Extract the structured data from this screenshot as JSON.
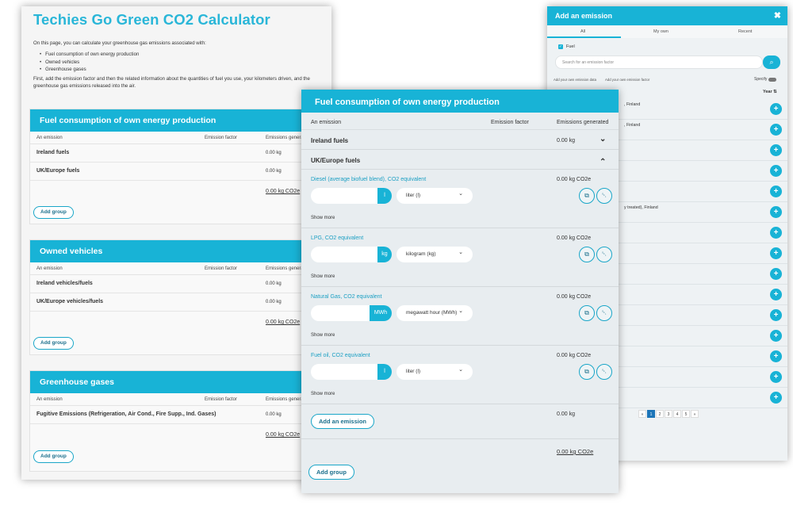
{
  "left": {
    "title": "Techies Go Green CO2 Calculator",
    "intro_line": "On this page, you can calculate your greenhouse gas emissions associated with:",
    "bullets": [
      "Fuel consumption of own energy production",
      "Owned vehicles",
      "Greenhouse gases"
    ],
    "outro": "First, add the emission factor and then the related information about the quantities of fuel you use, your kilometers driven, and the greenhouse gas emissions released into the air.",
    "groups": [
      {
        "title": "Fuel consumption of own energy production",
        "col_emission": "An emission",
        "col_factor": "Emission factor",
        "col_generated": "Emissions generated",
        "rows": [
          {
            "name": "Ireland fuels",
            "value": "0.00 kg"
          },
          {
            "name": "UK/Europe fuels",
            "value": "0.00 kg"
          }
        ],
        "total": "0.00 kg CO2e",
        "add_group": "Add group"
      },
      {
        "title": "Owned vehicles",
        "col_emission": "An emission",
        "col_factor": "Emission factor",
        "col_generated": "Emissions generated",
        "rows": [
          {
            "name": "Ireland vehicles/fuels",
            "value": "0.00 kg"
          },
          {
            "name": "UK/Europe vehicles/fuels",
            "value": "0.00 kg"
          }
        ],
        "total": "0.00 kg CO2e",
        "add_group": "Add group"
      },
      {
        "title": "Greenhouse gases",
        "col_emission": "An emission",
        "col_factor": "Emission factor",
        "col_generated": "Emissions generated",
        "rows": [
          {
            "name": "Fugitive Emissions (Refrigeration, Air Cond., Fire Supp., Ind. Gases)",
            "value": "0.00 kg"
          }
        ],
        "total": "0.00 kg CO2e",
        "add_group": "Add group"
      }
    ]
  },
  "right": {
    "title": "Add an emission",
    "close_icon": "✖",
    "tabs": [
      "All",
      "My own",
      "Recent"
    ],
    "fuel_label": "Fuel",
    "search_placeholder": "Search for an emission factor",
    "search_icon": "⌕",
    "link_own_data": "Add your own emission data",
    "link_own_factor": "Add your own emission factor",
    "specify": "Specify",
    "year": "Year",
    "items": [
      ", Finland",
      ", Finland",
      "",
      "",
      "",
      "y treated), Finland",
      "",
      "",
      "",
      "",
      "",
      "",
      "",
      "",
      ""
    ],
    "plus_icon": "+",
    "pages": [
      "«",
      "1",
      "2",
      "3",
      "4",
      "5",
      "»"
    ]
  },
  "center": {
    "title": "Fuel consumption of own energy production",
    "col_emission": "An emission",
    "col_factor": "Emission factor",
    "col_generated": "Emissions generated",
    "groups": [
      {
        "name": "Ireland fuels",
        "value": "0.00 kg",
        "chev": "⌄"
      },
      {
        "name": "UK/Europe fuels",
        "chev": "⌃"
      }
    ],
    "emissions": [
      {
        "name": "Diesel (average biofuel blend), CO2 equivalent",
        "value": "0.00 kg CO2e",
        "unit": "l",
        "select": "liter (l)",
        "show_more": "Show more"
      },
      {
        "name": "LPG, CO2 equivalent",
        "value": "0.00 kg CO2e",
        "unit": "kg",
        "select": "kilogram (kg)",
        "show_more": "Show more"
      },
      {
        "name": "Natural Gas, CO2 equivalent",
        "value": "0.00 kg CO2e",
        "unit": "MWh",
        "select": "megawatt hour (MWh)",
        "show_more": "Show more"
      },
      {
        "name": "Fuel oil, CO2 equivalent",
        "value": "0.00 kg CO2e",
        "unit": "l",
        "select": "liter (l)",
        "show_more": "Show more"
      }
    ],
    "copy_icon": "⧉",
    "delete_icon": "␡",
    "add_emission": "Add an emission",
    "sub_total": "0.00 kg",
    "total": "0.00 kg CO2e",
    "add_group": "Add group"
  }
}
